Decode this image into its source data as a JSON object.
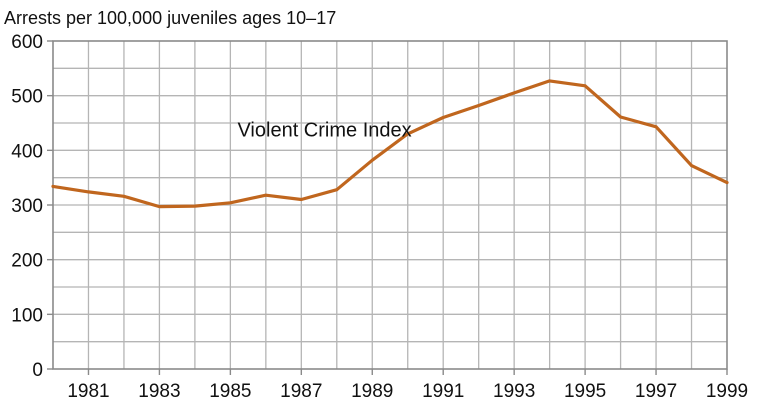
{
  "chart_data": {
    "type": "line",
    "ylabel": "Arrests per 100,000 juveniles ages 10–17",
    "xlim": [
      1980,
      1999
    ],
    "ylim": [
      0,
      600
    ],
    "x_ticks": [
      1981,
      1983,
      1985,
      1987,
      1989,
      1991,
      1993,
      1995,
      1997,
      1999
    ],
    "y_ticks": [
      0,
      100,
      200,
      300,
      400,
      500,
      600
    ],
    "grid": true,
    "colors": {
      "line": "#c0661e",
      "grid": "#b5b5b5",
      "frame": "#8a8a8a"
    },
    "series": [
      {
        "name": "Violent Crime Index",
        "x": [
          1980,
          1981,
          1982,
          1983,
          1984,
          1985,
          1986,
          1987,
          1988,
          1989,
          1990,
          1991,
          1992,
          1993,
          1994,
          1995,
          1996,
          1997,
          1998,
          1999
        ],
        "y": [
          334,
          324,
          316,
          297,
          298,
          304,
          318,
          310,
          328,
          382,
          430,
          460,
          482,
          505,
          527,
          518,
          461,
          443,
          372,
          341
        ]
      }
    ],
    "annotations": [
      {
        "text": "Violent Crime Index",
        "x": 1985.2,
        "y": 425
      }
    ]
  }
}
